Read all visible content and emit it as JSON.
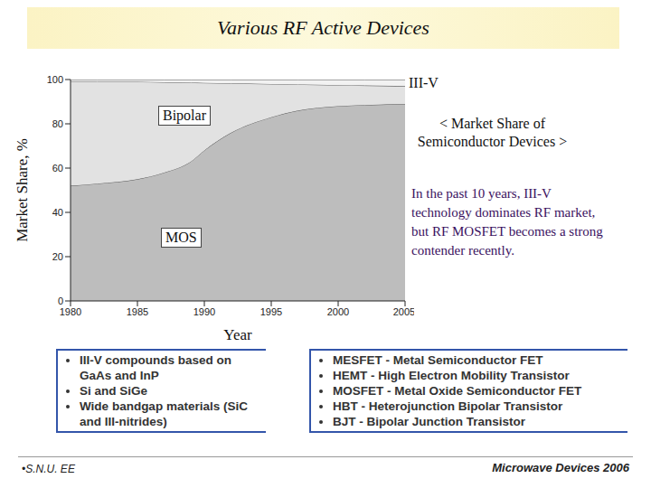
{
  "chart_data": {
    "type": "area",
    "title": "Various RF Active Devices",
    "subtitle": "< Market Share of Semiconductor Devices >",
    "annotation": "In the past 10 years, III-V technology dominates RF market, but RF MOSFET becomes a strong contender recently.",
    "x_label": "Year",
    "y_label": "Market Share, %",
    "x": [
      1980,
      1982,
      1985,
      1987,
      1989,
      1990,
      1992,
      1995,
      1997,
      2000,
      2002,
      2005
    ],
    "series": [
      {
        "name": "MOS",
        "color": "#bdbdbd",
        "values": [
          52,
          53,
          55,
          58,
          63,
          68,
          76,
          83,
          86,
          88,
          88.5,
          89
        ]
      },
      {
        "name": "Bipolar",
        "color": "#e2e2e2",
        "values": [
          47,
          46,
          44,
          40.8,
          35.6,
          30.5,
          22.3,
          15,
          11.8,
          9.5,
          8.8,
          8
        ]
      },
      {
        "name": "III-V",
        "color": "#f2f2f2",
        "values": [
          1,
          1,
          1,
          1.2,
          1.4,
          1.5,
          1.7,
          2,
          2.2,
          2.5,
          2.7,
          3
        ]
      }
    ],
    "stacked": true,
    "xlim": [
      1980,
      2005
    ],
    "xticks": [
      1980,
      1985,
      1990,
      1995,
      2000,
      2005
    ],
    "ylim": [
      0,
      100
    ],
    "yticks": [
      0,
      20,
      40,
      60,
      80,
      100
    ]
  },
  "slide": {
    "left_list": [
      "III-V compounds based on GaAs and InP",
      "Si and SiGe",
      "Wide bandgap materials (SiC and III-nitrides)"
    ],
    "right_list": [
      "MESFET - Metal Semiconductor FET",
      "HEMT - High Electron Mobility Transistor",
      "MOSFET - Metal Oxide Semiconductor FET",
      "HBT - Heterojunction Bipolar Transistor",
      "BJT - Bipolar Junction Transistor"
    ],
    "footer_left": "•S.N.U. EE",
    "footer_right": "Microwave Devices 2006"
  }
}
